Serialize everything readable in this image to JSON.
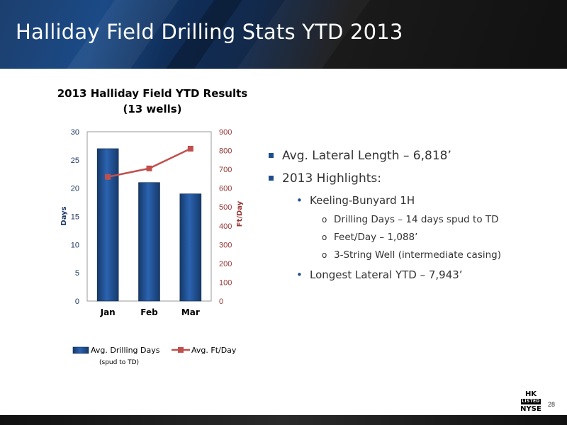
{
  "slide": {
    "title": "Halliday Field Drilling Stats YTD 2013",
    "page_number": "28"
  },
  "logo": {
    "line1": "HK",
    "line2": "LISTED",
    "line3": "NYSE"
  },
  "bullets": [
    {
      "level": 1,
      "text": "Avg. Lateral Length – 6,818’"
    },
    {
      "level": 1,
      "text": "2013 Highlights:"
    },
    {
      "level": 2,
      "text": "Keeling-Bunyard 1H"
    },
    {
      "level": 3,
      "text": "Drilling Days – 14 days spud to TD"
    },
    {
      "level": 3,
      "text": "Feet/Day – 1,088’"
    },
    {
      "level": 3,
      "text": "3-String Well (intermediate casing)"
    },
    {
      "level": 2,
      "text": "Longest Lateral YTD – 7,943’"
    }
  ],
  "chart_data": {
    "type": "bar",
    "title_line1": "2013 Halliday Field YTD Results",
    "title_line2": "(13 wells)",
    "categories": [
      "Jan",
      "Feb",
      "Mar"
    ],
    "ylabel": "Days",
    "y2label": "Ft/Day",
    "ylim": [
      0,
      30
    ],
    "y2lim": [
      0,
      900
    ],
    "yticks": [
      "0",
      "5",
      "10",
      "15",
      "20",
      "25",
      "30"
    ],
    "y2ticks": [
      "0",
      "100",
      "200",
      "300",
      "400",
      "500",
      "600",
      "700",
      "800",
      "900"
    ],
    "series": [
      {
        "name": "Avg. Drilling Days",
        "note": "(spud to TD)",
        "type": "bar",
        "axis": "left",
        "color": "#1f4e8c",
        "values": [
          27,
          21,
          19
        ]
      },
      {
        "name": "Avg. Ft/Day",
        "type": "line",
        "axis": "right",
        "color": "#c0504d",
        "values": [
          660,
          705,
          810
        ]
      }
    ],
    "legend_position": "bottom",
    "colors": {
      "left_axis": "#1f3864",
      "right_axis": "#943634"
    }
  }
}
